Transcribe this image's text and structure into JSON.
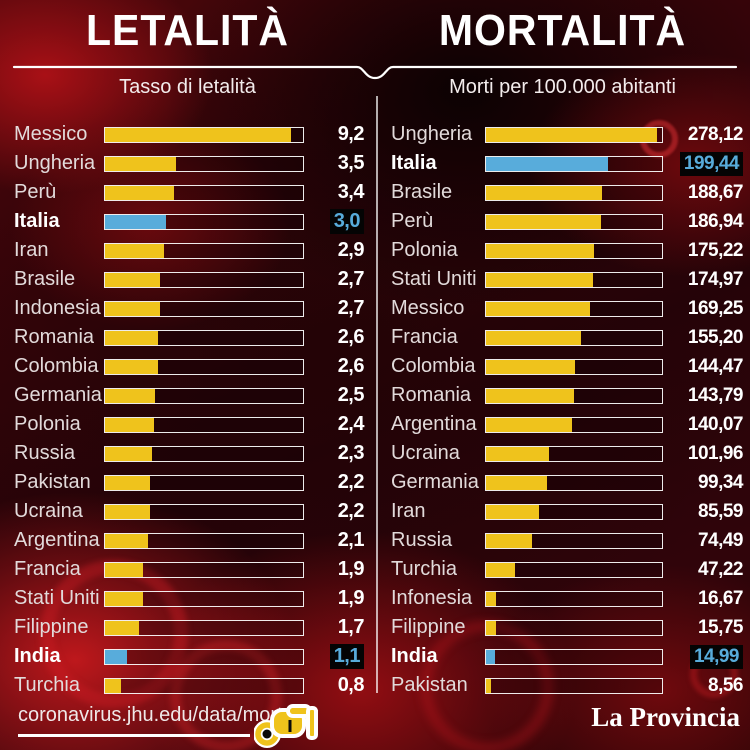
{
  "footer": {
    "source_link": "coronavirus.jhu.edu/data/mortality",
    "brand": "La Provincia"
  },
  "colors": {
    "bar_yellow": "#efc31c",
    "bar_highlight_blue": "#58acdb",
    "badge_background": "#040404",
    "badge_text": "#58acdb",
    "text_white": "#ffffff",
    "background_dark_red": "#360409",
    "background_bright_red": "#c61a1e"
  },
  "chart_data": [
    {
      "type": "bar",
      "title": "LETALITÀ",
      "subtitle": "Tasso di letalità",
      "max": 9.2,
      "max_fill_pct": 94,
      "bar_color": "#efc31c",
      "highlight_bar_color": "#58acdb",
      "legend_note": "highlighted rows: Italia, India",
      "rows": [
        {
          "label": "Messico",
          "value": 9.2,
          "display": "9,2",
          "highlight": false
        },
        {
          "label": "Ungheria",
          "value": 3.5,
          "display": "3,5",
          "highlight": false
        },
        {
          "label": "Perù",
          "value": 3.4,
          "display": "3,4",
          "highlight": false
        },
        {
          "label": "Italia",
          "value": 3.0,
          "display": "3,0",
          "highlight": true
        },
        {
          "label": "Iran",
          "value": 2.9,
          "display": "2,9",
          "highlight": false
        },
        {
          "label": "Brasile",
          "value": 2.7,
          "display": "2,7",
          "highlight": false
        },
        {
          "label": "Indonesia",
          "value": 2.7,
          "display": "2,7",
          "highlight": false
        },
        {
          "label": "Romania",
          "value": 2.6,
          "display": "2,6",
          "highlight": false
        },
        {
          "label": "Colombia",
          "value": 2.6,
          "display": "2,6",
          "highlight": false
        },
        {
          "label": "Germania",
          "value": 2.5,
          "display": "2,5",
          "highlight": false
        },
        {
          "label": "Polonia",
          "value": 2.4,
          "display": "2,4",
          "highlight": false
        },
        {
          "label": "Russia",
          "value": 2.3,
          "display": "2,3",
          "highlight": false
        },
        {
          "label": "Pakistan",
          "value": 2.2,
          "display": "2,2",
          "highlight": false
        },
        {
          "label": "Ucraina",
          "value": 2.2,
          "display": "2,2",
          "highlight": false
        },
        {
          "label": "Argentina",
          "value": 2.1,
          "display": "2,1",
          "highlight": false
        },
        {
          "label": "Francia",
          "value": 1.9,
          "display": "1,9",
          "highlight": false
        },
        {
          "label": "Stati Uniti",
          "value": 1.9,
          "display": "1,9",
          "highlight": false
        },
        {
          "label": "Filippine",
          "value": 1.7,
          "display": "1,7",
          "highlight": false
        },
        {
          "label": "India",
          "value": 1.1,
          "display": "1,1",
          "highlight": true
        },
        {
          "label": "Turchia",
          "value": 0.8,
          "display": "0,8",
          "highlight": false
        }
      ]
    },
    {
      "type": "bar",
      "title": "MORTALITÀ",
      "subtitle": "Morti per 100.000 abitanti",
      "max": 278.12,
      "max_fill_pct": 97,
      "bar_color": "#efc31c",
      "highlight_bar_color": "#58acdb",
      "legend_note": "highlighted rows: Italia, India",
      "rows": [
        {
          "label": "Ungheria",
          "value": 278.12,
          "display": "278,12",
          "highlight": false
        },
        {
          "label": "Italia",
          "value": 199.44,
          "display": "199,44",
          "highlight": true
        },
        {
          "label": "Brasile",
          "value": 188.67,
          "display": "188,67",
          "highlight": false
        },
        {
          "label": "Perù",
          "value": 186.94,
          "display": "186,94",
          "highlight": false
        },
        {
          "label": "Polonia",
          "value": 175.22,
          "display": "175,22",
          "highlight": false
        },
        {
          "label": "Stati Uniti",
          "value": 174.97,
          "display": "174,97",
          "highlight": false
        },
        {
          "label": "Messico",
          "value": 169.25,
          "display": "169,25",
          "highlight": false
        },
        {
          "label": "Francia",
          "value": 155.2,
          "display": "155,20",
          "highlight": false
        },
        {
          "label": "Colombia",
          "value": 144.47,
          "display": "144,47",
          "highlight": false
        },
        {
          "label": "Romania",
          "value": 143.79,
          "display": "143,79",
          "highlight": false
        },
        {
          "label": "Argentina",
          "value": 140.07,
          "display": "140,07",
          "highlight": false
        },
        {
          "label": "Ucraina",
          "value": 101.96,
          "display": "101,96",
          "highlight": false
        },
        {
          "label": "Germania",
          "value": 99.34,
          "display": "99,34",
          "highlight": false
        },
        {
          "label": "Iran",
          "value": 85.59,
          "display": "85,59",
          "highlight": false
        },
        {
          "label": "Russia",
          "value": 74.49,
          "display": "74,49",
          "highlight": false
        },
        {
          "label": "Turchia",
          "value": 47.22,
          "display": "47,22",
          "highlight": false
        },
        {
          "label": "Infonesia",
          "value": 16.67,
          "display": "16,67",
          "highlight": false
        },
        {
          "label": "Filippine",
          "value": 15.75,
          "display": "15,75",
          "highlight": false
        },
        {
          "label": "India",
          "value": 14.99,
          "display": "14,99",
          "highlight": true
        },
        {
          "label": "Pakistan",
          "value": 8.56,
          "display": "8,56",
          "highlight": false
        }
      ]
    }
  ]
}
